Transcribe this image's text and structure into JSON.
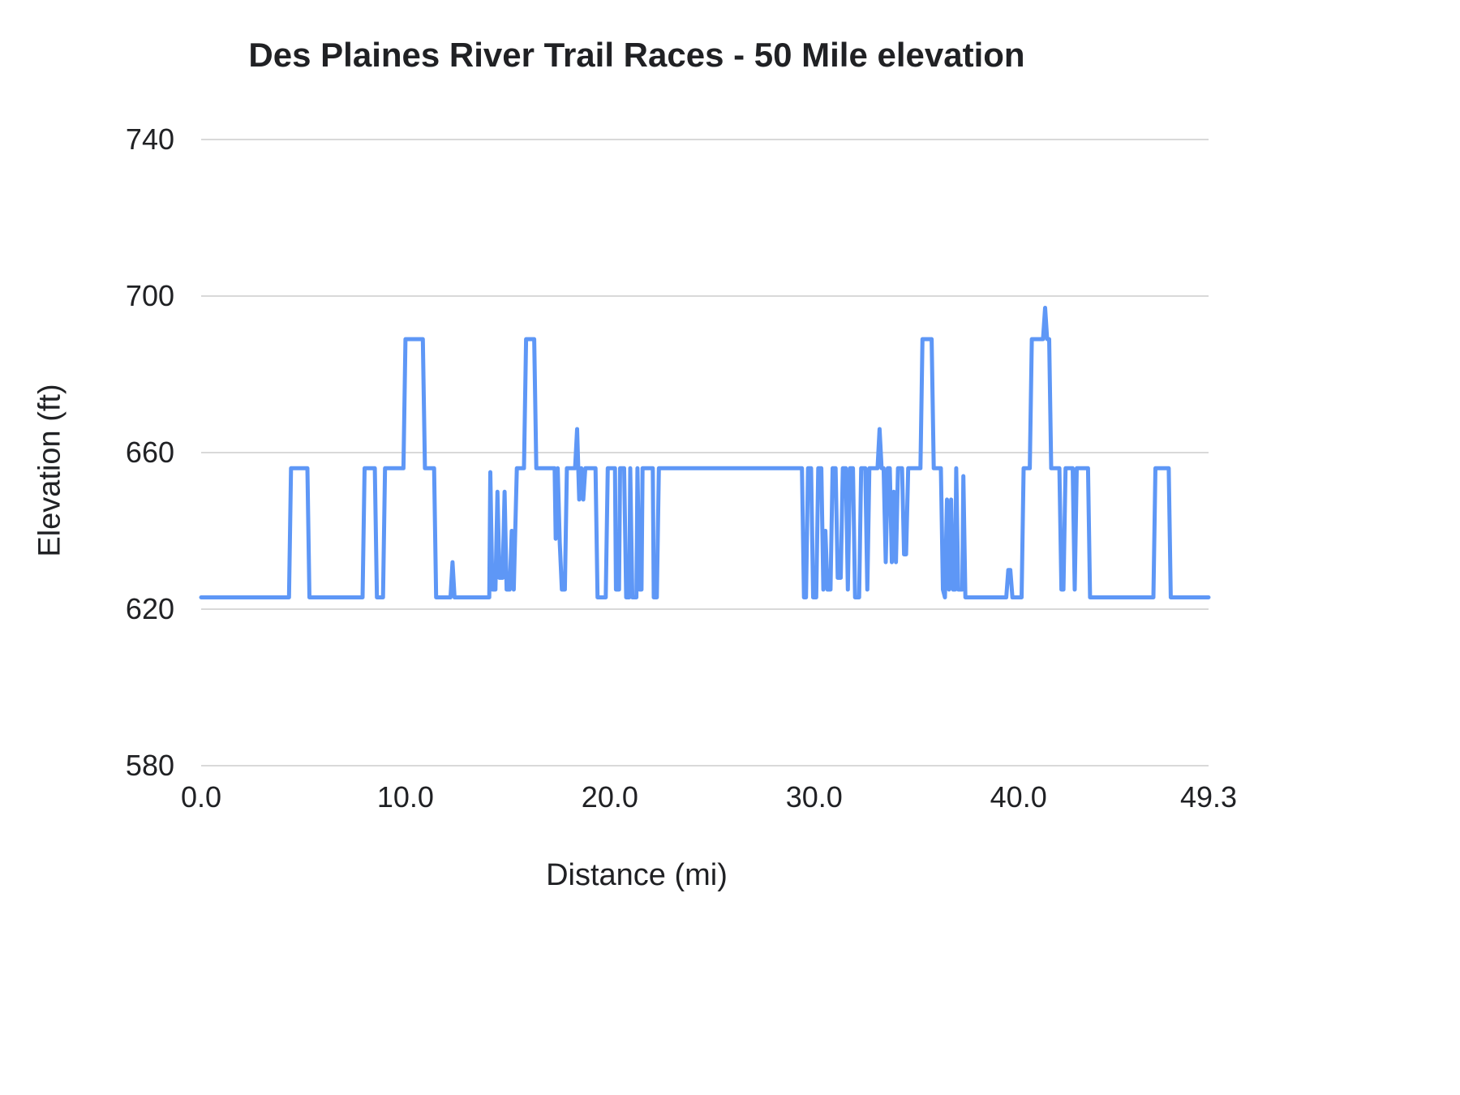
{
  "chart_data": {
    "type": "line",
    "title": "Des Plaines River Trail Races - 50 Mile elevation",
    "xlabel": "Distance (mi)",
    "ylabel": "Elevation (ft)",
    "xlim": [
      0,
      49.3
    ],
    "ylim": [
      580,
      740
    ],
    "grid": "horizontal",
    "legend": "none",
    "line_color": "#5e97f6",
    "gridline_color": "#d9d9d9",
    "y_ticks": [
      {
        "value": 580,
        "label": "580"
      },
      {
        "value": 620,
        "label": "620"
      },
      {
        "value": 660,
        "label": "660"
      },
      {
        "value": 700,
        "label": "700"
      },
      {
        "value": 740,
        "label": "740"
      }
    ],
    "x_ticks": [
      {
        "value": 0.0,
        "label": "0.0"
      },
      {
        "value": 10.0,
        "label": "10.0"
      },
      {
        "value": 20.0,
        "label": "20.0"
      },
      {
        "value": 30.0,
        "label": "30.0"
      },
      {
        "value": 40.0,
        "label": "40.0"
      },
      {
        "value": 49.3,
        "label": "49.3"
      }
    ],
    "series": [
      {
        "name": "Elevation",
        "points": [
          [
            0.0,
            623
          ],
          [
            4.3,
            623
          ],
          [
            4.4,
            656
          ],
          [
            5.2,
            656
          ],
          [
            5.3,
            623
          ],
          [
            7.9,
            623
          ],
          [
            8.0,
            656
          ],
          [
            8.5,
            656
          ],
          [
            8.6,
            623
          ],
          [
            8.9,
            623
          ],
          [
            9.0,
            656
          ],
          [
            9.9,
            656
          ],
          [
            10.0,
            689
          ],
          [
            10.85,
            689
          ],
          [
            10.95,
            656
          ],
          [
            11.4,
            656
          ],
          [
            11.5,
            623
          ],
          [
            12.2,
            623
          ],
          [
            12.3,
            632
          ],
          [
            12.4,
            623
          ],
          [
            14.1,
            623
          ],
          [
            14.15,
            655
          ],
          [
            14.25,
            625
          ],
          [
            14.4,
            625
          ],
          [
            14.5,
            650
          ],
          [
            14.6,
            628
          ],
          [
            14.75,
            628
          ],
          [
            14.85,
            650
          ],
          [
            14.95,
            625
          ],
          [
            15.1,
            625
          ],
          [
            15.2,
            640
          ],
          [
            15.3,
            625
          ],
          [
            15.45,
            656
          ],
          [
            15.8,
            656
          ],
          [
            15.9,
            689
          ],
          [
            16.3,
            689
          ],
          [
            16.4,
            656
          ],
          [
            17.3,
            656
          ],
          [
            17.35,
            638
          ],
          [
            17.45,
            656
          ],
          [
            17.55,
            637
          ],
          [
            17.65,
            625
          ],
          [
            17.8,
            625
          ],
          [
            17.9,
            656
          ],
          [
            18.3,
            656
          ],
          [
            18.4,
            666
          ],
          [
            18.5,
            648
          ],
          [
            18.6,
            656
          ],
          [
            18.7,
            648
          ],
          [
            18.8,
            656
          ],
          [
            19.3,
            656
          ],
          [
            19.4,
            623
          ],
          [
            19.8,
            623
          ],
          [
            19.9,
            656
          ],
          [
            20.25,
            656
          ],
          [
            20.3,
            625
          ],
          [
            20.45,
            625
          ],
          [
            20.5,
            656
          ],
          [
            20.7,
            656
          ],
          [
            20.8,
            623
          ],
          [
            20.95,
            623
          ],
          [
            21.0,
            656
          ],
          [
            21.1,
            623
          ],
          [
            21.3,
            623
          ],
          [
            21.35,
            656
          ],
          [
            21.45,
            625
          ],
          [
            21.55,
            625
          ],
          [
            21.6,
            656
          ],
          [
            22.1,
            656
          ],
          [
            22.15,
            623
          ],
          [
            22.3,
            623
          ],
          [
            22.4,
            656
          ],
          [
            29.4,
            656
          ],
          [
            29.5,
            623
          ],
          [
            29.6,
            623
          ],
          [
            29.7,
            656
          ],
          [
            29.85,
            656
          ],
          [
            29.95,
            623
          ],
          [
            30.1,
            623
          ],
          [
            30.2,
            656
          ],
          [
            30.35,
            656
          ],
          [
            30.45,
            625
          ],
          [
            30.55,
            640
          ],
          [
            30.65,
            625
          ],
          [
            30.8,
            625
          ],
          [
            30.9,
            656
          ],
          [
            31.05,
            656
          ],
          [
            31.15,
            628
          ],
          [
            31.3,
            628
          ],
          [
            31.4,
            656
          ],
          [
            31.55,
            656
          ],
          [
            31.65,
            625
          ],
          [
            31.75,
            656
          ],
          [
            31.9,
            656
          ],
          [
            32.0,
            623
          ],
          [
            32.2,
            623
          ],
          [
            32.3,
            656
          ],
          [
            32.5,
            656
          ],
          [
            32.6,
            625
          ],
          [
            32.7,
            656
          ],
          [
            33.1,
            656
          ],
          [
            33.2,
            666
          ],
          [
            33.3,
            656
          ],
          [
            33.4,
            656
          ],
          [
            33.5,
            632
          ],
          [
            33.6,
            656
          ],
          [
            33.7,
            656
          ],
          [
            33.8,
            632
          ],
          [
            33.9,
            650
          ],
          [
            34.0,
            632
          ],
          [
            34.1,
            656
          ],
          [
            34.3,
            656
          ],
          [
            34.4,
            634
          ],
          [
            34.5,
            634
          ],
          [
            34.6,
            656
          ],
          [
            35.2,
            656
          ],
          [
            35.3,
            689
          ],
          [
            35.75,
            689
          ],
          [
            35.85,
            656
          ],
          [
            36.2,
            656
          ],
          [
            36.3,
            625
          ],
          [
            36.4,
            623
          ],
          [
            36.5,
            648
          ],
          [
            36.6,
            625
          ],
          [
            36.7,
            648
          ],
          [
            36.8,
            625
          ],
          [
            36.9,
            625
          ],
          [
            36.95,
            656
          ],
          [
            37.05,
            625
          ],
          [
            37.25,
            625
          ],
          [
            37.3,
            654
          ],
          [
            37.4,
            623
          ],
          [
            39.4,
            623
          ],
          [
            39.5,
            630
          ],
          [
            39.6,
            630
          ],
          [
            39.7,
            623
          ],
          [
            40.15,
            623
          ],
          [
            40.25,
            656
          ],
          [
            40.55,
            656
          ],
          [
            40.65,
            689
          ],
          [
            41.2,
            689
          ],
          [
            41.3,
            697
          ],
          [
            41.4,
            689
          ],
          [
            41.5,
            689
          ],
          [
            41.6,
            656
          ],
          [
            42.0,
            656
          ],
          [
            42.1,
            625
          ],
          [
            42.2,
            625
          ],
          [
            42.3,
            656
          ],
          [
            42.65,
            656
          ],
          [
            42.75,
            625
          ],
          [
            42.85,
            656
          ],
          [
            43.4,
            656
          ],
          [
            43.5,
            623
          ],
          [
            46.6,
            623
          ],
          [
            46.7,
            656
          ],
          [
            47.35,
            656
          ],
          [
            47.45,
            623
          ],
          [
            49.3,
            623
          ]
        ]
      }
    ]
  }
}
